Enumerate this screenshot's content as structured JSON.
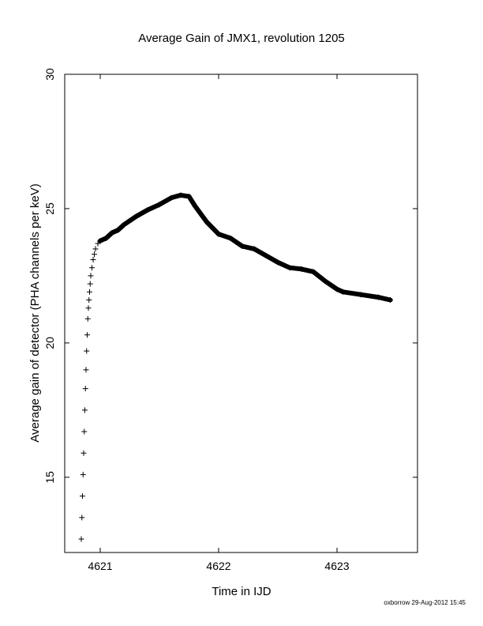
{
  "chart_data": {
    "type": "scatter",
    "title": "Average Gain of JMX1, revolution 1205",
    "xlabel": "Time in IJD",
    "ylabel": "Average gain of detector (PHA channels per keV)",
    "xlim": [
      4620.7,
      4623.68
    ],
    "ylim": [
      12.2,
      30
    ],
    "xticks": [
      4621,
      4622,
      4623
    ],
    "xtick_labels": [
      "4621",
      "4622",
      "4623"
    ],
    "yticks": [
      15,
      20,
      25,
      30
    ],
    "ytick_labels": [
      "15",
      "20",
      "25",
      "30"
    ],
    "grid": false,
    "marker": "plus",
    "series": [
      {
        "x": [
          4620.84,
          4620.845,
          4620.85,
          4620.855,
          4620.86,
          4620.865,
          4620.87,
          4620.875,
          4620.88,
          4620.885,
          4620.89,
          4620.895,
          4620.9,
          4620.905,
          4620.91,
          4620.915,
          4620.92,
          4620.93,
          4620.94,
          4620.95,
          4620.96,
          4620.98,
          4621.0,
          4621.05,
          4621.1,
          4621.15,
          4621.2,
          4621.3,
          4621.4,
          4621.5,
          4621.6,
          4621.68,
          4621.75,
          4621.8,
          4621.9,
          4622.0,
          4622.1,
          4622.2,
          4622.3,
          4622.4,
          4622.5,
          4622.6,
          4622.7,
          4622.8,
          4622.9,
          4623.0,
          4623.05,
          4623.2,
          4623.35,
          4623.45
        ],
        "y": [
          12.7,
          13.5,
          14.3,
          15.1,
          15.9,
          16.7,
          17.5,
          18.3,
          19.0,
          19.7,
          20.3,
          20.9,
          21.3,
          21.6,
          21.9,
          22.2,
          22.5,
          22.8,
          23.1,
          23.3,
          23.5,
          23.7,
          23.8,
          23.9,
          24.1,
          24.2,
          24.4,
          24.7,
          24.95,
          25.15,
          25.4,
          25.5,
          25.45,
          25.1,
          24.5,
          24.05,
          23.9,
          23.6,
          23.5,
          23.25,
          23.0,
          22.8,
          22.75,
          22.65,
          22.3,
          22.0,
          21.9,
          21.8,
          21.7,
          21.6
        ]
      }
    ]
  },
  "footer": "oxborrow 29-Aug-2012 15:45"
}
